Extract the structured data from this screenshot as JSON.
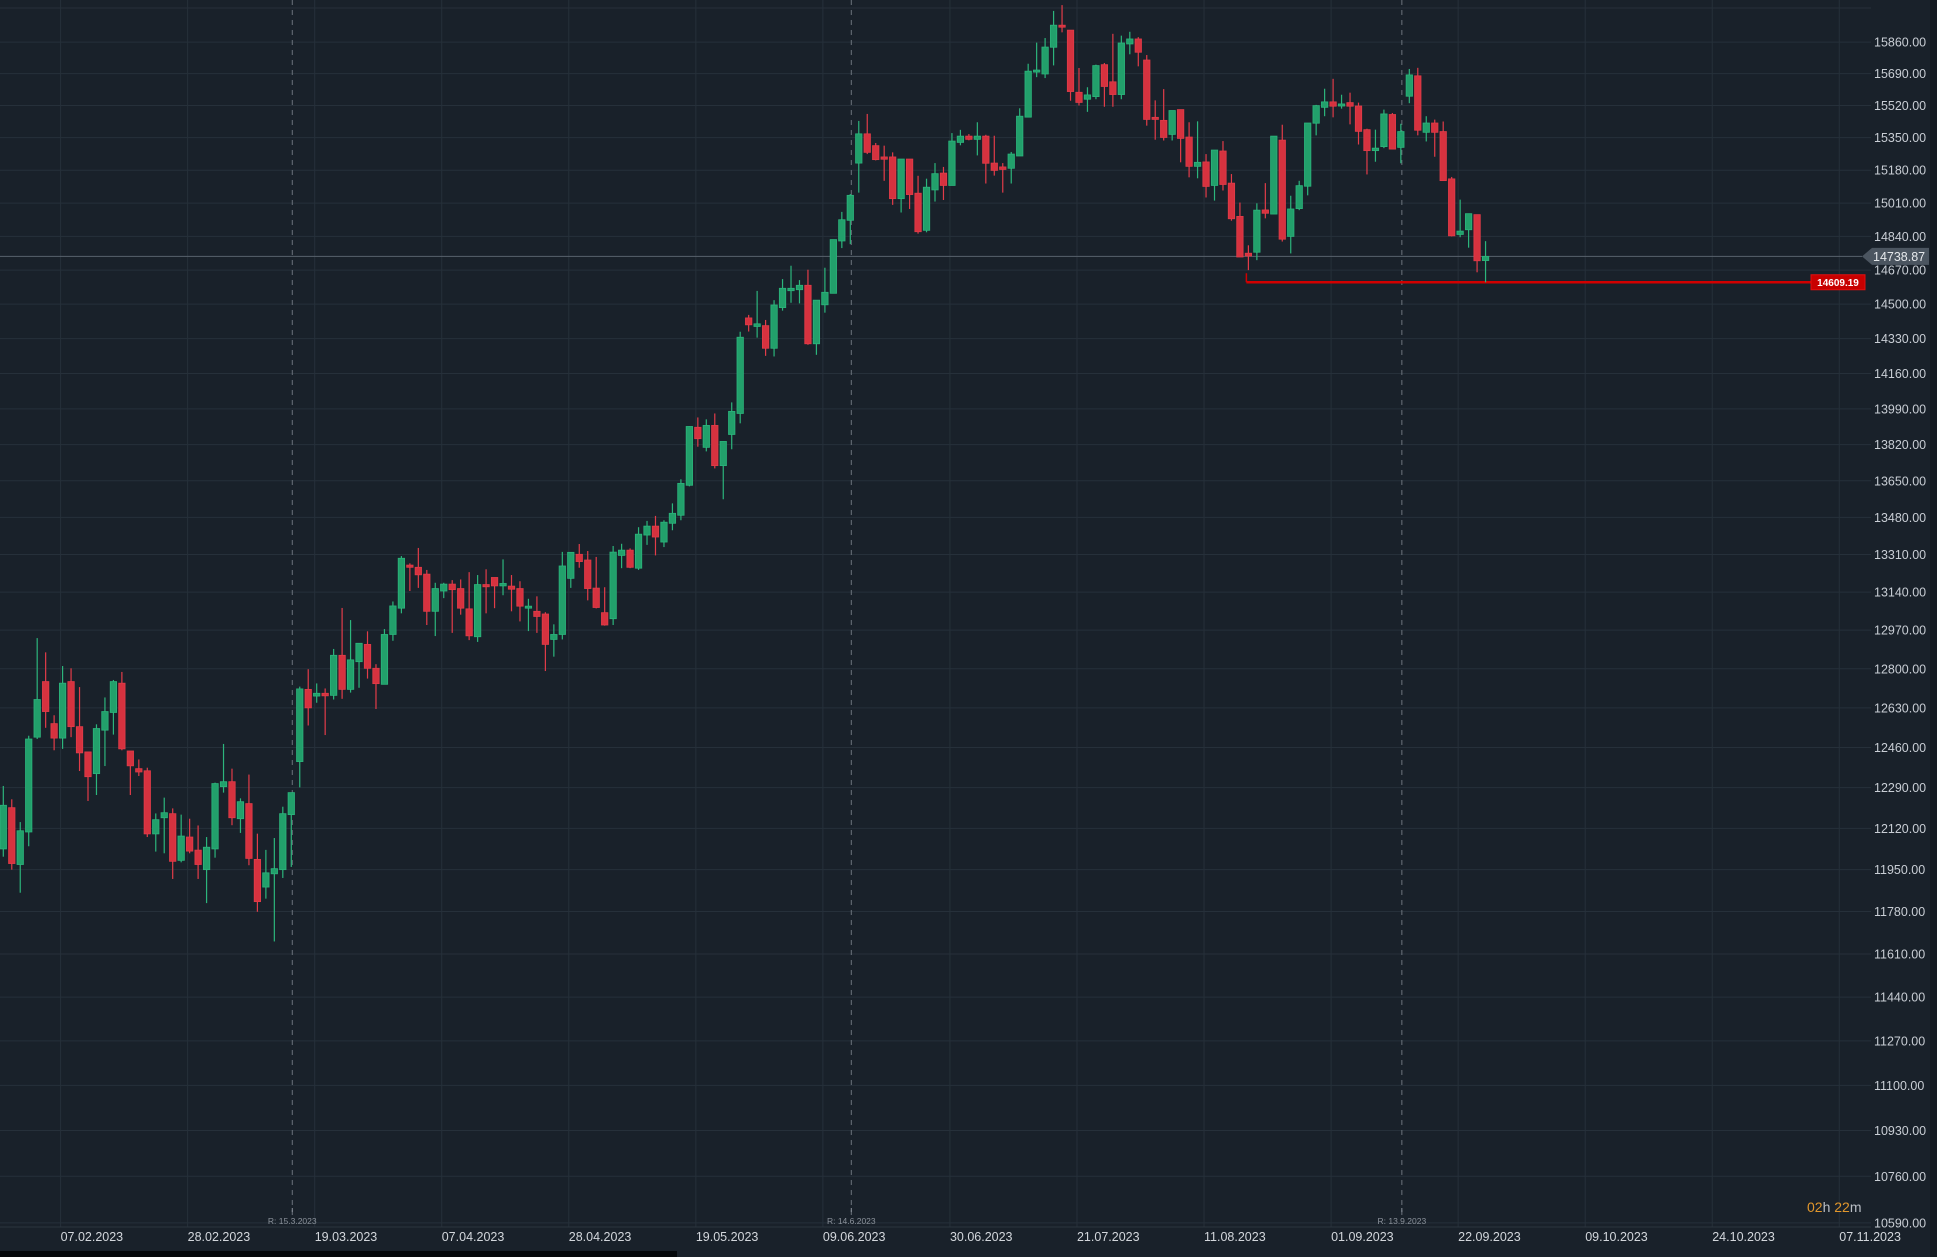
{
  "chart_data": {
    "type": "candlestick",
    "y_scale": "log",
    "ylim": [
      10575,
      16090
    ],
    "grid": true,
    "colors": {
      "background": "#19212a",
      "grid": "#26303a",
      "up": "#22a06b",
      "down": "#d6323f",
      "support_line": "#d10000",
      "last_price_line": "#59626c"
    },
    "y_tick_labels": [
      "15860.00",
      "15690.00",
      "15520.00",
      "15350.00",
      "15180.00",
      "15010.00",
      "14840.00",
      "14670.00",
      "14500.00",
      "14330.00",
      "14160.00",
      "13990.00",
      "13820.00",
      "13650.00",
      "13480.00",
      "13310.00",
      "13140.00",
      "12970.00",
      "12800.00",
      "12630.00",
      "12460.00",
      "12290.00",
      "12120.00",
      "11950.00",
      "11780.00",
      "11610.00",
      "11440.00",
      "11270.00",
      "11100.00",
      "10930.00",
      "10760.00",
      "10590.00"
    ],
    "x_tick_labels": [
      "07.02.2023",
      "28.02.2023",
      "19.03.2023",
      "07.04.2023",
      "28.04.2023",
      "19.05.2023",
      "09.06.2023",
      "30.06.2023",
      "21.07.2023",
      "11.08.2023",
      "01.09.2023",
      "22.09.2023",
      "09.10.2023",
      "24.10.2023",
      "07.11.2023"
    ],
    "x_tick_bar_index": [
      7,
      22,
      37,
      52,
      67,
      82,
      97,
      112,
      127,
      142,
      157,
      172,
      187,
      202,
      217
    ],
    "event_markers": [
      {
        "label": "R: 15.3.2023",
        "bar_index": 34
      },
      {
        "label": "R: 14.6.2023",
        "bar_index": 100
      },
      {
        "label": "R: 13.9.2023",
        "bar_index": 165
      }
    ],
    "last_price": {
      "value": 14738.87,
      "label": "14738.87"
    },
    "support_line": {
      "value": 14609.19,
      "label": "14609.19",
      "start_bar_index": 147
    },
    "candles_ohlc": [
      [
        12035,
        12297,
        12003,
        12216
      ],
      [
        12206,
        12241,
        11950,
        11975
      ],
      [
        11971,
        12146,
        11856,
        12110
      ],
      [
        12105,
        12510,
        12046,
        12496
      ],
      [
        12504,
        12935,
        12496,
        12666
      ],
      [
        12744,
        12872,
        12544,
        12614
      ],
      [
        12562,
        12598,
        12448,
        12500
      ],
      [
        12500,
        12812,
        12454,
        12737
      ],
      [
        12744,
        12802,
        12504,
        12549
      ],
      [
        12549,
        12720,
        12360,
        12437
      ],
      [
        12441,
        12441,
        12234,
        12336
      ],
      [
        12349,
        12559,
        12259,
        12541
      ],
      [
        12534,
        12675,
        12381,
        12614
      ],
      [
        12610,
        12751,
        12515,
        12744
      ],
      [
        12737,
        12786,
        12448,
        12454
      ],
      [
        12445,
        12445,
        12259,
        12382
      ],
      [
        12370,
        12409,
        12339,
        12356
      ],
      [
        12361,
        12374,
        12084,
        12097
      ],
      [
        12097,
        12182,
        12024,
        12156
      ],
      [
        12164,
        12248,
        12017,
        12185
      ],
      [
        12181,
        12203,
        11912,
        11984
      ],
      [
        11988,
        12177,
        11980,
        12088
      ],
      [
        12084,
        12160,
        12017,
        12026
      ],
      [
        12030,
        12132,
        11912,
        11971
      ],
      [
        11950,
        12084,
        11814,
        12042
      ],
      [
        12035,
        12311,
        11999,
        12307
      ],
      [
        12294,
        12475,
        12269,
        12315
      ],
      [
        12315,
        12370,
        12133,
        12164
      ],
      [
        12160,
        12245,
        12101,
        12231
      ],
      [
        12223,
        12345,
        11968,
        11996
      ],
      [
        11992,
        12098,
        11779,
        11820
      ],
      [
        11879,
        12031,
        11832,
        11937
      ],
      [
        11933,
        12080,
        11660,
        11954
      ],
      [
        11950,
        12210,
        11916,
        12181
      ],
      [
        12177,
        12269,
        11961,
        12269
      ],
      [
        12400,
        12722,
        12291,
        12712
      ],
      [
        12710,
        12798,
        12554,
        12630
      ],
      [
        12681,
        12736,
        12652,
        12693
      ],
      [
        12693,
        12714,
        12513,
        12682
      ],
      [
        12684,
        12887,
        12666,
        12859
      ],
      [
        12859,
        13069,
        12669,
        12710
      ],
      [
        12710,
        13015,
        12696,
        12839
      ],
      [
        12831,
        12912,
        12717,
        12912
      ],
      [
        12907,
        12965,
        12757,
        12802
      ],
      [
        12802,
        12820,
        12625,
        12735
      ],
      [
        12732,
        12975,
        12732,
        12951
      ],
      [
        12951,
        13098,
        12923,
        13078
      ],
      [
        13068,
        13303,
        13045,
        13293
      ],
      [
        13262,
        13270,
        13145,
        13252
      ],
      [
        13252,
        13340,
        13159,
        13218
      ],
      [
        13221,
        13240,
        12993,
        13054
      ],
      [
        13054,
        13182,
        12944,
        13156
      ],
      [
        13145,
        13182,
        13113,
        13176
      ],
      [
        13176,
        13194,
        12958,
        13151
      ],
      [
        13156,
        13197,
        13039,
        13068
      ],
      [
        13065,
        13230,
        12926,
        12945
      ],
      [
        12941,
        13217,
        12918,
        13174
      ],
      [
        13174,
        13243,
        13045,
        13164
      ],
      [
        13206,
        13206,
        13068,
        13168
      ],
      [
        13168,
        13288,
        13126,
        13179
      ],
      [
        13167,
        13217,
        13054,
        13153
      ],
      [
        13156,
        13189,
        13009,
        13077
      ],
      [
        13068,
        13110,
        12966,
        13077
      ],
      [
        13054,
        13121,
        12958,
        13031
      ],
      [
        13042,
        13050,
        12790,
        12907
      ],
      [
        12929,
        12996,
        12853,
        12951
      ],
      [
        12951,
        13322,
        12929,
        13258
      ],
      [
        13202,
        13320,
        13159,
        13320
      ],
      [
        13311,
        13358,
        13250,
        13278
      ],
      [
        13285,
        13326,
        13103,
        13156
      ],
      [
        13158,
        13299,
        13067,
        13071
      ],
      [
        13048,
        13162,
        12990,
        12993
      ],
      [
        13021,
        13349,
        12993,
        13321
      ],
      [
        13306,
        13359,
        13248,
        13330
      ],
      [
        13330,
        13338,
        13248,
        13252
      ],
      [
        13248,
        13435,
        13240,
        13403
      ],
      [
        13399,
        13464,
        13354,
        13440
      ],
      [
        13440,
        13487,
        13306,
        13390
      ],
      [
        13367,
        13467,
        13344,
        13458
      ],
      [
        13453,
        13545,
        13421,
        13499
      ],
      [
        13490,
        13657,
        13467,
        13638
      ],
      [
        13629,
        13907,
        13624,
        13906
      ],
      [
        13902,
        13949,
        13810,
        13848
      ],
      [
        13807,
        13940,
        13788,
        13911
      ],
      [
        13911,
        13968,
        13708,
        13721
      ],
      [
        13721,
        13835,
        13564,
        13835
      ],
      [
        13868,
        14021,
        13798,
        13978
      ],
      [
        13968,
        14364,
        13921,
        14337
      ],
      [
        14432,
        14447,
        14365,
        14398
      ],
      [
        14390,
        14566,
        14335,
        14403
      ],
      [
        14394,
        14422,
        14246,
        14283
      ],
      [
        14283,
        14520,
        14243,
        14496
      ],
      [
        14483,
        14625,
        14468,
        14579
      ],
      [
        14567,
        14692,
        14507,
        14579
      ],
      [
        14572,
        14620,
        14504,
        14594
      ],
      [
        14594,
        14672,
        14300,
        14305
      ],
      [
        14305,
        14520,
        14251,
        14520
      ],
      [
        14497,
        14682,
        14458,
        14559
      ],
      [
        14554,
        14824,
        14554,
        14824
      ],
      [
        14817,
        14965,
        14781,
        14925
      ],
      [
        14922,
        15057,
        14801,
        15050
      ],
      [
        15217,
        15438,
        15064,
        15370
      ],
      [
        15370,
        15475,
        15264,
        15273
      ],
      [
        15308,
        15322,
        15231,
        15235
      ],
      [
        15249,
        15308,
        15125,
        15237
      ],
      [
        15249,
        15273,
        15001,
        15033
      ],
      [
        15033,
        15238,
        14962,
        15238
      ],
      [
        15238,
        15238,
        14980,
        15054
      ],
      [
        15061,
        15151,
        14854,
        14864
      ],
      [
        14871,
        15136,
        14861,
        15092
      ],
      [
        15078,
        15217,
        15018,
        15162
      ],
      [
        15165,
        15197,
        15026,
        15101
      ],
      [
        15101,
        15374,
        15101,
        15332
      ],
      [
        15325,
        15391,
        15310,
        15358
      ],
      [
        15358,
        15369,
        15336,
        15341
      ],
      [
        15341,
        15431,
        15257,
        15358
      ],
      [
        15358,
        15365,
        15111,
        15216
      ],
      [
        15217,
        15360,
        15152,
        15179
      ],
      [
        15197,
        15217,
        15064,
        15184
      ],
      [
        15190,
        15275,
        15111,
        15264
      ],
      [
        15254,
        15505,
        15254,
        15463
      ],
      [
        15458,
        15743,
        15458,
        15703
      ],
      [
        15698,
        15857,
        15671,
        15709
      ],
      [
        15688,
        15882,
        15666,
        15833
      ],
      [
        15832,
        16030,
        15734,
        15952
      ],
      [
        15952,
        16062,
        15913,
        15941
      ],
      [
        15925,
        15925,
        15545,
        15594
      ],
      [
        15590,
        15720,
        15520,
        15536
      ],
      [
        15553,
        15617,
        15486,
        15576
      ],
      [
        15567,
        15738,
        15553,
        15733
      ],
      [
        15738,
        15747,
        15513,
        15621
      ],
      [
        15646,
        15905,
        15513,
        15578
      ],
      [
        15578,
        15895,
        15553,
        15855
      ],
      [
        15850,
        15916,
        15794,
        15877
      ],
      [
        15877,
        15887,
        15729,
        15805
      ],
      [
        15763,
        15790,
        15413,
        15446
      ],
      [
        15457,
        15547,
        15339,
        15446
      ],
      [
        15441,
        15607,
        15335,
        15351
      ],
      [
        15367,
        15493,
        15335,
        15493
      ],
      [
        15498,
        15498,
        15221,
        15346
      ],
      [
        15353,
        15431,
        15143,
        15200
      ],
      [
        15200,
        15436,
        15138,
        15221
      ],
      [
        15223,
        15264,
        15039,
        15096
      ],
      [
        15101,
        15285,
        15023,
        15285
      ],
      [
        15280,
        15332,
        15075,
        15106
      ],
      [
        15113,
        15160,
        14920,
        14930
      ],
      [
        14942,
        15013,
        14736,
        14736
      ],
      [
        14755,
        14795,
        14670,
        14741
      ],
      [
        14760,
        15009,
        14720,
        14974
      ],
      [
        14975,
        15113,
        14932,
        14958
      ],
      [
        14954,
        15358,
        14954,
        15358
      ],
      [
        15337,
        15418,
        14814,
        14826
      ],
      [
        14840,
        15048,
        14754,
        14980
      ],
      [
        14982,
        15125,
        14974,
        15100
      ],
      [
        15097,
        15427,
        15050,
        15427
      ],
      [
        15426,
        15523,
        15362,
        15519
      ],
      [
        15510,
        15609,
        15463,
        15539
      ],
      [
        15539,
        15662,
        15457,
        15516
      ],
      [
        15517,
        15577,
        15503,
        15528
      ],
      [
        15535,
        15588,
        15420,
        15516
      ],
      [
        15517,
        15535,
        15314,
        15383
      ],
      [
        15392,
        15397,
        15158,
        15282
      ],
      [
        15282,
        15392,
        15224,
        15295
      ],
      [
        15303,
        15498,
        15295,
        15475
      ],
      [
        15472,
        15480,
        15290,
        15290
      ],
      [
        15299,
        15423,
        15216,
        15382
      ],
      [
        15569,
        15715,
        15532,
        15683
      ],
      [
        15678,
        15721,
        15362,
        15389
      ],
      [
        15378,
        15463,
        15330,
        15427
      ],
      [
        15427,
        15445,
        15250,
        15378
      ],
      [
        15382,
        15435,
        15126,
        15126
      ],
      [
        15135,
        15145,
        14840,
        14843
      ],
      [
        14850,
        15028,
        14836,
        14867
      ],
      [
        14874,
        14956,
        14783,
        14956
      ],
      [
        14951,
        14951,
        14659,
        14717
      ],
      [
        14718,
        14816,
        14609,
        14739
      ]
    ]
  },
  "timer": {
    "hours": "02",
    "hours_unit": "h",
    "minutes": "22",
    "minutes_unit": "m"
  }
}
